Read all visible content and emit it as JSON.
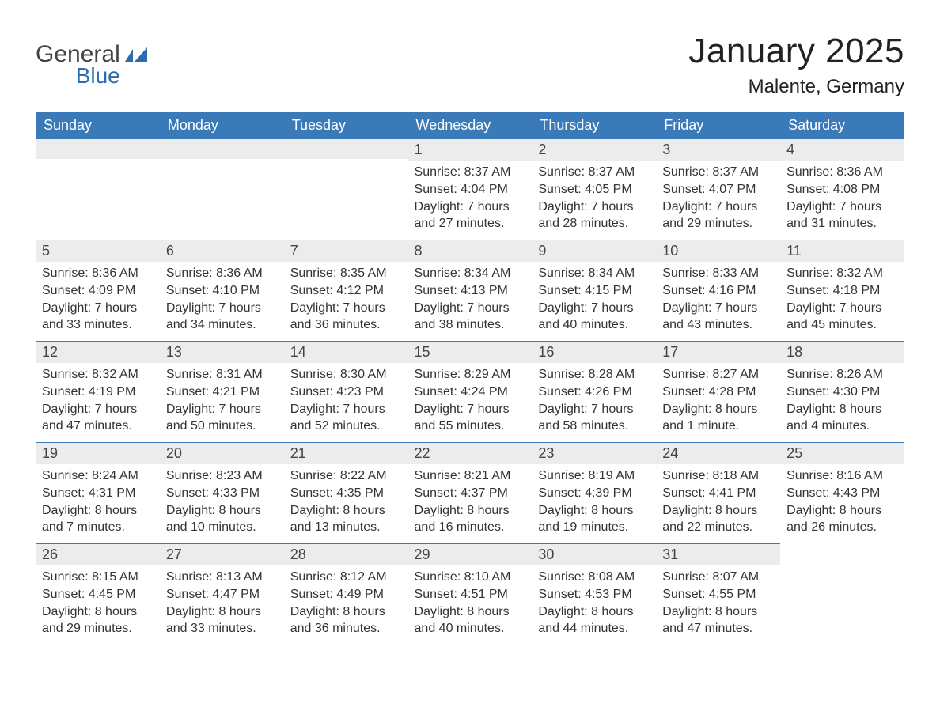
{
  "logo": {
    "general": "General",
    "blue": "Blue"
  },
  "title": "January 2025",
  "location": "Malente, Germany",
  "colors": {
    "header_bg": "#3a7ab8",
    "header_text": "#ffffff",
    "daynum_bg": "#ececec",
    "daynum_border": "#3a7ab8",
    "body_text": "#333333",
    "title_text": "#222222",
    "logo_general": "#444444",
    "logo_blue": "#2a6cb0",
    "page_bg": "#ffffff"
  },
  "dayHeaders": [
    "Sunday",
    "Monday",
    "Tuesday",
    "Wednesday",
    "Thursday",
    "Friday",
    "Saturday"
  ],
  "weeks": [
    [
      null,
      null,
      null,
      {
        "n": "1",
        "sr": "Sunrise: 8:37 AM",
        "ss": "Sunset: 4:04 PM",
        "d1": "Daylight: 7 hours",
        "d2": "and 27 minutes."
      },
      {
        "n": "2",
        "sr": "Sunrise: 8:37 AM",
        "ss": "Sunset: 4:05 PM",
        "d1": "Daylight: 7 hours",
        "d2": "and 28 minutes."
      },
      {
        "n": "3",
        "sr": "Sunrise: 8:37 AM",
        "ss": "Sunset: 4:07 PM",
        "d1": "Daylight: 7 hours",
        "d2": "and 29 minutes."
      },
      {
        "n": "4",
        "sr": "Sunrise: 8:36 AM",
        "ss": "Sunset: 4:08 PM",
        "d1": "Daylight: 7 hours",
        "d2": "and 31 minutes."
      }
    ],
    [
      {
        "n": "5",
        "sr": "Sunrise: 8:36 AM",
        "ss": "Sunset: 4:09 PM",
        "d1": "Daylight: 7 hours",
        "d2": "and 33 minutes."
      },
      {
        "n": "6",
        "sr": "Sunrise: 8:36 AM",
        "ss": "Sunset: 4:10 PM",
        "d1": "Daylight: 7 hours",
        "d2": "and 34 minutes."
      },
      {
        "n": "7",
        "sr": "Sunrise: 8:35 AM",
        "ss": "Sunset: 4:12 PM",
        "d1": "Daylight: 7 hours",
        "d2": "and 36 minutes."
      },
      {
        "n": "8",
        "sr": "Sunrise: 8:34 AM",
        "ss": "Sunset: 4:13 PM",
        "d1": "Daylight: 7 hours",
        "d2": "and 38 minutes."
      },
      {
        "n": "9",
        "sr": "Sunrise: 8:34 AM",
        "ss": "Sunset: 4:15 PM",
        "d1": "Daylight: 7 hours",
        "d2": "and 40 minutes."
      },
      {
        "n": "10",
        "sr": "Sunrise: 8:33 AM",
        "ss": "Sunset: 4:16 PM",
        "d1": "Daylight: 7 hours",
        "d2": "and 43 minutes."
      },
      {
        "n": "11",
        "sr": "Sunrise: 8:32 AM",
        "ss": "Sunset: 4:18 PM",
        "d1": "Daylight: 7 hours",
        "d2": "and 45 minutes."
      }
    ],
    [
      {
        "n": "12",
        "sr": "Sunrise: 8:32 AM",
        "ss": "Sunset: 4:19 PM",
        "d1": "Daylight: 7 hours",
        "d2": "and 47 minutes."
      },
      {
        "n": "13",
        "sr": "Sunrise: 8:31 AM",
        "ss": "Sunset: 4:21 PM",
        "d1": "Daylight: 7 hours",
        "d2": "and 50 minutes."
      },
      {
        "n": "14",
        "sr": "Sunrise: 8:30 AM",
        "ss": "Sunset: 4:23 PM",
        "d1": "Daylight: 7 hours",
        "d2": "and 52 minutes."
      },
      {
        "n": "15",
        "sr": "Sunrise: 8:29 AM",
        "ss": "Sunset: 4:24 PM",
        "d1": "Daylight: 7 hours",
        "d2": "and 55 minutes."
      },
      {
        "n": "16",
        "sr": "Sunrise: 8:28 AM",
        "ss": "Sunset: 4:26 PM",
        "d1": "Daylight: 7 hours",
        "d2": "and 58 minutes."
      },
      {
        "n": "17",
        "sr": "Sunrise: 8:27 AM",
        "ss": "Sunset: 4:28 PM",
        "d1": "Daylight: 8 hours",
        "d2": "and 1 minute."
      },
      {
        "n": "18",
        "sr": "Sunrise: 8:26 AM",
        "ss": "Sunset: 4:30 PM",
        "d1": "Daylight: 8 hours",
        "d2": "and 4 minutes."
      }
    ],
    [
      {
        "n": "19",
        "sr": "Sunrise: 8:24 AM",
        "ss": "Sunset: 4:31 PM",
        "d1": "Daylight: 8 hours",
        "d2": "and 7 minutes."
      },
      {
        "n": "20",
        "sr": "Sunrise: 8:23 AM",
        "ss": "Sunset: 4:33 PM",
        "d1": "Daylight: 8 hours",
        "d2": "and 10 minutes."
      },
      {
        "n": "21",
        "sr": "Sunrise: 8:22 AM",
        "ss": "Sunset: 4:35 PM",
        "d1": "Daylight: 8 hours",
        "d2": "and 13 minutes."
      },
      {
        "n": "22",
        "sr": "Sunrise: 8:21 AM",
        "ss": "Sunset: 4:37 PM",
        "d1": "Daylight: 8 hours",
        "d2": "and 16 minutes."
      },
      {
        "n": "23",
        "sr": "Sunrise: 8:19 AM",
        "ss": "Sunset: 4:39 PM",
        "d1": "Daylight: 8 hours",
        "d2": "and 19 minutes."
      },
      {
        "n": "24",
        "sr": "Sunrise: 8:18 AM",
        "ss": "Sunset: 4:41 PM",
        "d1": "Daylight: 8 hours",
        "d2": "and 22 minutes."
      },
      {
        "n": "25",
        "sr": "Sunrise: 8:16 AM",
        "ss": "Sunset: 4:43 PM",
        "d1": "Daylight: 8 hours",
        "d2": "and 26 minutes."
      }
    ],
    [
      {
        "n": "26",
        "sr": "Sunrise: 8:15 AM",
        "ss": "Sunset: 4:45 PM",
        "d1": "Daylight: 8 hours",
        "d2": "and 29 minutes."
      },
      {
        "n": "27",
        "sr": "Sunrise: 8:13 AM",
        "ss": "Sunset: 4:47 PM",
        "d1": "Daylight: 8 hours",
        "d2": "and 33 minutes."
      },
      {
        "n": "28",
        "sr": "Sunrise: 8:12 AM",
        "ss": "Sunset: 4:49 PM",
        "d1": "Daylight: 8 hours",
        "d2": "and 36 minutes."
      },
      {
        "n": "29",
        "sr": "Sunrise: 8:10 AM",
        "ss": "Sunset: 4:51 PM",
        "d1": "Daylight: 8 hours",
        "d2": "and 40 minutes."
      },
      {
        "n": "30",
        "sr": "Sunrise: 8:08 AM",
        "ss": "Sunset: 4:53 PM",
        "d1": "Daylight: 8 hours",
        "d2": "and 44 minutes."
      },
      {
        "n": "31",
        "sr": "Sunrise: 8:07 AM",
        "ss": "Sunset: 4:55 PM",
        "d1": "Daylight: 8 hours",
        "d2": "and 47 minutes."
      },
      null
    ]
  ]
}
